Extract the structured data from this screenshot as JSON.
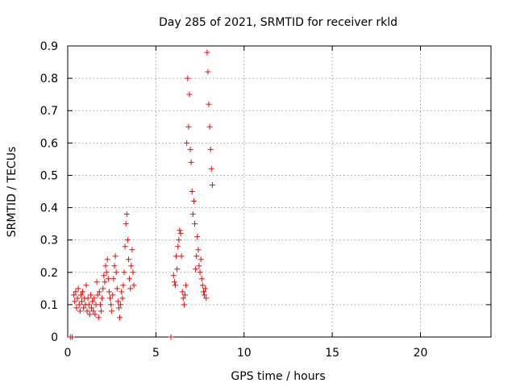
{
  "chart_data": {
    "type": "scatter",
    "title": "Day 285 of 2021, SRMTID for receiver rkld",
    "xlabel": "GPS time / hours",
    "ylabel": "SRMTID / TECUs",
    "xlim": [
      0,
      24
    ],
    "ylim": [
      0,
      0.9
    ],
    "xticks": [
      0,
      5,
      10,
      15,
      20
    ],
    "yticks": [
      0,
      0.1,
      0.2,
      0.3,
      0.4,
      0.5,
      0.6,
      0.7,
      0.8,
      0.9
    ],
    "xtick_labels": [
      "0",
      "5",
      "10",
      "15",
      "20"
    ],
    "ytick_labels": [
      "0",
      "0.1",
      "0.2",
      "0.3",
      "0.4",
      "0.5",
      "0.6",
      "0.7",
      "0.8",
      "0.9"
    ],
    "grid": true,
    "marker": "+",
    "color": "#ff0000",
    "series": [
      {
        "name": "SRMTID",
        "points": [
          [
            0.15,
            0
          ],
          [
            0.25,
            0
          ],
          [
            5.85,
            0
          ],
          [
            0.35,
            0.13
          ],
          [
            0.4,
            0.11
          ],
          [
            0.45,
            0.14
          ],
          [
            0.5,
            0.09
          ],
          [
            0.55,
            0.12
          ],
          [
            0.6,
            0.15
          ],
          [
            0.65,
            0.1
          ],
          [
            0.7,
            0.08
          ],
          [
            0.75,
            0.13
          ],
          [
            0.8,
            0.11
          ],
          [
            0.85,
            0.14
          ],
          [
            0.9,
            0.09
          ],
          [
            0.95,
            0.12
          ],
          [
            1.0,
            0.1
          ],
          [
            1.05,
            0.16
          ],
          [
            1.1,
            0.08
          ],
          [
            1.15,
            0.12
          ],
          [
            1.2,
            0.1
          ],
          [
            1.25,
            0.07
          ],
          [
            1.3,
            0.13
          ],
          [
            1.35,
            0.09
          ],
          [
            1.4,
            0.11
          ],
          [
            1.45,
            0.08
          ],
          [
            1.5,
            0.12
          ],
          [
            1.55,
            0.07
          ],
          [
            1.6,
            0.1
          ],
          [
            1.65,
            0.17
          ],
          [
            1.7,
            0.13
          ],
          [
            1.75,
            0.06
          ],
          [
            1.8,
            0.14
          ],
          [
            1.85,
            0.1
          ],
          [
            1.9,
            0.08
          ],
          [
            1.95,
            0.12
          ],
          [
            2.0,
            0.15
          ],
          [
            2.05,
            0.19
          ],
          [
            2.1,
            0.17
          ],
          [
            2.15,
            0.22
          ],
          [
            2.2,
            0.2
          ],
          [
            2.25,
            0.24
          ],
          [
            2.3,
            0.18
          ],
          [
            2.35,
            0.14
          ],
          [
            2.4,
            0.12
          ],
          [
            2.45,
            0.1
          ],
          [
            2.5,
            0.08
          ],
          [
            2.55,
            0.13
          ],
          [
            2.6,
            0.18
          ],
          [
            2.65,
            0.22
          ],
          [
            2.7,
            0.25
          ],
          [
            2.75,
            0.2
          ],
          [
            2.8,
            0.15
          ],
          [
            2.85,
            0.11
          ],
          [
            2.9,
            0.09
          ],
          [
            2.95,
            0.06
          ],
          [
            3.0,
            0.1
          ],
          [
            3.05,
            0.14
          ],
          [
            3.1,
            0.12
          ],
          [
            3.15,
            0.16
          ],
          [
            3.2,
            0.2
          ],
          [
            3.25,
            0.28
          ],
          [
            3.3,
            0.35
          ],
          [
            3.35,
            0.38
          ],
          [
            3.4,
            0.3
          ],
          [
            3.45,
            0.24
          ],
          [
            3.5,
            0.18
          ],
          [
            3.55,
            0.15
          ],
          [
            3.6,
            0.22
          ],
          [
            3.65,
            0.27
          ],
          [
            3.7,
            0.2
          ],
          [
            3.75,
            0.16
          ],
          [
            6.0,
            0.19
          ],
          [
            6.05,
            0.17
          ],
          [
            6.1,
            0.16
          ],
          [
            6.15,
            0.25
          ],
          [
            6.2,
            0.21
          ],
          [
            6.25,
            0.28
          ],
          [
            6.3,
            0.3
          ],
          [
            6.35,
            0.33
          ],
          [
            6.4,
            0.32
          ],
          [
            6.45,
            0.25
          ],
          [
            6.5,
            0.14
          ],
          [
            6.55,
            0.12
          ],
          [
            6.6,
            0.1
          ],
          [
            6.65,
            0.13
          ],
          [
            6.7,
            0.16
          ],
          [
            6.75,
            0.6
          ],
          [
            6.8,
            0.8
          ],
          [
            6.85,
            0.65
          ],
          [
            6.9,
            0.75
          ],
          [
            6.95,
            0.58
          ],
          [
            7.0,
            0.54
          ],
          [
            7.05,
            0.45
          ],
          [
            7.1,
            0.38
          ],
          [
            7.15,
            0.42
          ],
          [
            7.2,
            0.35
          ],
          [
            7.25,
            0.21
          ],
          [
            7.3,
            0.25
          ],
          [
            7.35,
            0.31
          ],
          [
            7.4,
            0.27
          ],
          [
            7.45,
            0.22
          ],
          [
            7.5,
            0.2
          ],
          [
            7.55,
            0.24
          ],
          [
            7.6,
            0.18
          ],
          [
            7.65,
            0.16
          ],
          [
            7.7,
            0.14
          ],
          [
            7.75,
            0.13
          ],
          [
            7.8,
            0.15
          ],
          [
            7.85,
            0.12
          ],
          [
            7.9,
            0.88
          ],
          [
            7.95,
            0.82
          ],
          [
            8.0,
            0.72
          ],
          [
            8.05,
            0.65
          ],
          [
            8.1,
            0.58
          ],
          [
            8.15,
            0.52
          ],
          [
            8.2,
            0.47
          ]
        ]
      }
    ]
  }
}
